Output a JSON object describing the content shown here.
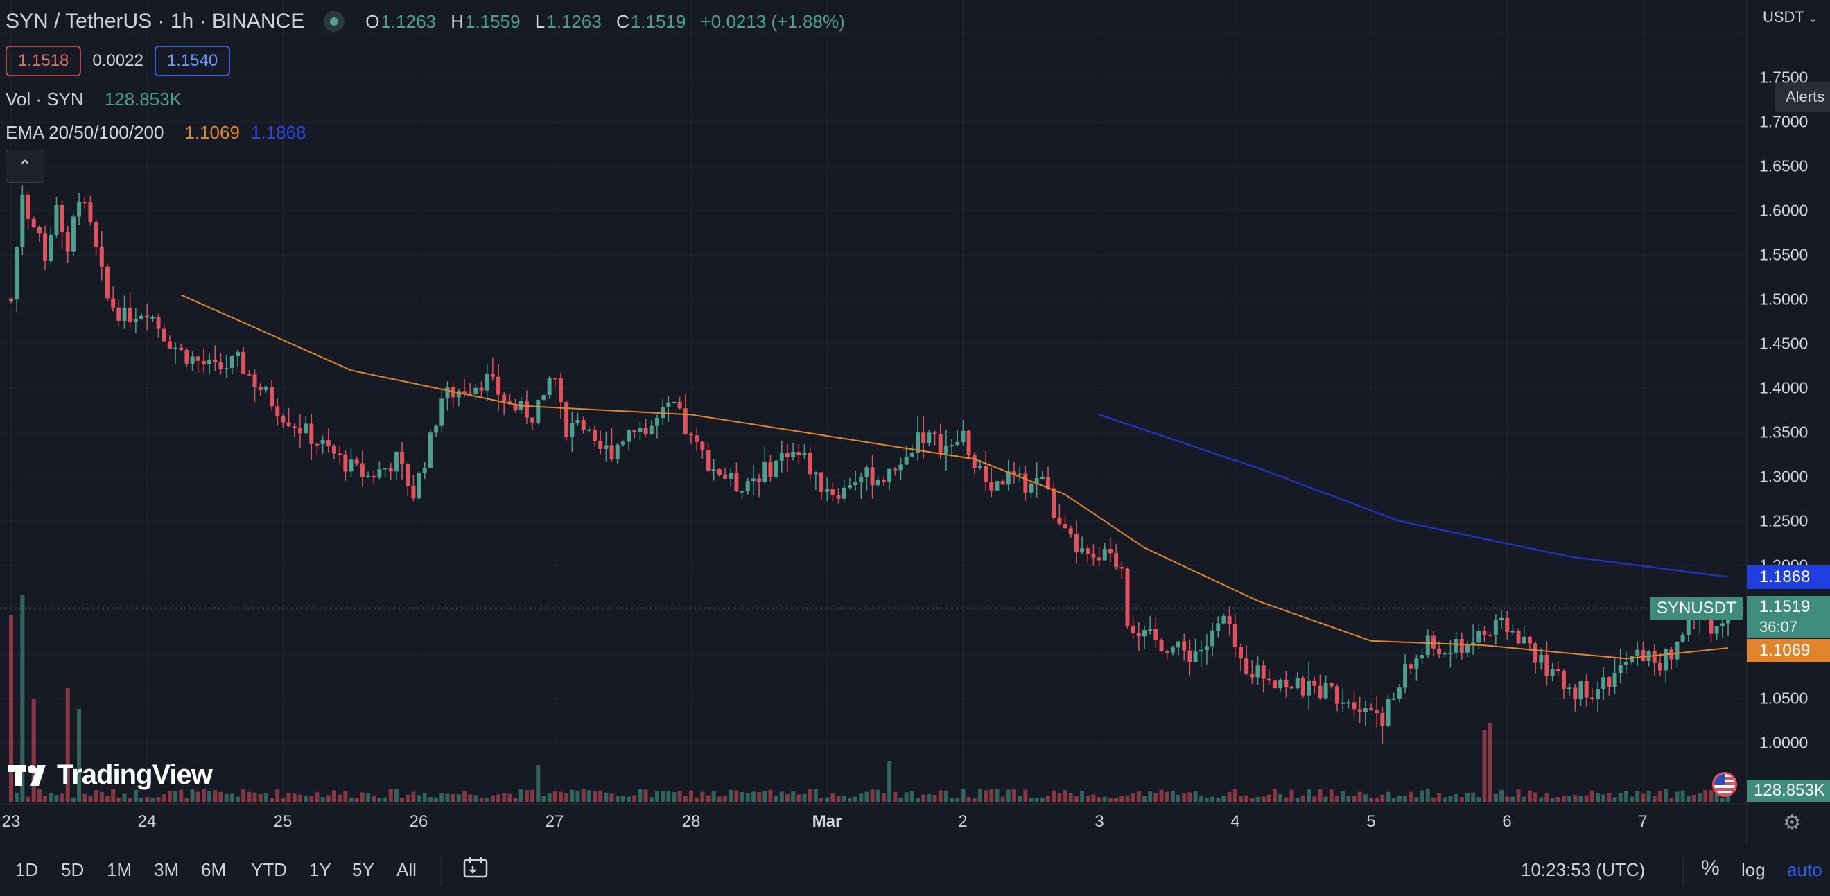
{
  "header": {
    "symbol": "SYN / TetherUS · 1h · BINANCE",
    "open_key": "O",
    "open": "1.1263",
    "high_key": "H",
    "high": "1.1559",
    "low_key": "L",
    "low": "1.1263",
    "close_key": "C",
    "close": "1.1519",
    "change": "+0.0213 (+1.88%)"
  },
  "quote": {
    "bid": "1.1518",
    "spread": "0.0022",
    "ask": "1.1540"
  },
  "volume_indicator": {
    "name": "Vol · SYN",
    "value": "128.853K"
  },
  "ema_indicator": {
    "name": "EMA 20/50/100/200",
    "value_1": "1.1069",
    "value_2": "1.1868"
  },
  "price_scale": {
    "currency": "USDT",
    "alerts_label": "Alerts",
    "ticks": [
      "1.7500",
      "1.7000",
      "1.6500",
      "1.6000",
      "1.5500",
      "1.5000",
      "1.4500",
      "1.4000",
      "1.3500",
      "1.3000",
      "1.2500",
      "1.2000",
      "1.0500",
      "1.0000"
    ]
  },
  "price_tags": {
    "ema_blue": "1.1868",
    "symbol_label": "SYNUSDT",
    "last_price": "1.1519",
    "countdown": "36:07",
    "ema_orange": "1.1069",
    "volume": "128.853K"
  },
  "logo_text": "TradingView",
  "time_axis": [
    "23",
    "24",
    "25",
    "26",
    "27",
    "28",
    "Mar",
    "2",
    "3",
    "4",
    "5",
    "6",
    "7"
  ],
  "bottom_toolbar": {
    "ranges": [
      "1D",
      "5D",
      "1M",
      "3M",
      "6M",
      "YTD",
      "1Y",
      "5Y",
      "All"
    ],
    "clock": "10:23:53 (UTC)",
    "percent": "%",
    "log": "log",
    "auto": "auto"
  },
  "colors": {
    "up": "#4e9f8f",
    "down": "#e0525c",
    "ema_orange": "#e0852e",
    "ema_blue": "#1f32b8",
    "background": "#161a25"
  },
  "chart_data": {
    "type": "candlestick",
    "interval": "1h",
    "symbol": "SYNUSDT",
    "x_unit": "hours since Feb 23 00:00 UTC",
    "ylim": [
      0.96,
      1.77
    ],
    "close_anchors": [
      [
        0,
        1.5
      ],
      [
        2,
        1.62
      ],
      [
        4,
        1.58
      ],
      [
        6,
        1.55
      ],
      [
        8,
        1.61
      ],
      [
        10,
        1.56
      ],
      [
        12,
        1.62
      ],
      [
        14,
        1.58
      ],
      [
        17,
        1.5
      ],
      [
        20,
        1.48
      ],
      [
        24,
        1.49
      ],
      [
        27,
        1.46
      ],
      [
        30,
        1.44
      ],
      [
        33,
        1.43
      ],
      [
        36,
        1.42
      ],
      [
        40,
        1.43
      ],
      [
        44,
        1.4
      ],
      [
        48,
        1.37
      ],
      [
        52,
        1.35
      ],
      [
        56,
        1.33
      ],
      [
        60,
        1.31
      ],
      [
        63,
        1.3
      ],
      [
        66,
        1.31
      ],
      [
        68,
        1.32
      ],
      [
        71,
        1.28
      ],
      [
        74,
        1.34
      ],
      [
        76,
        1.39
      ],
      [
        80,
        1.4
      ],
      [
        84,
        1.41
      ],
      [
        88,
        1.38
      ],
      [
        92,
        1.37
      ],
      [
        95,
        1.41
      ],
      [
        96,
        1.42
      ],
      [
        98,
        1.34
      ],
      [
        100,
        1.37
      ],
      [
        103,
        1.33
      ],
      [
        106,
        1.33
      ],
      [
        110,
        1.36
      ],
      [
        112,
        1.35
      ],
      [
        115,
        1.37
      ],
      [
        117,
        1.38
      ],
      [
        120,
        1.34
      ],
      [
        124,
        1.31
      ],
      [
        128,
        1.29
      ],
      [
        131,
        1.3
      ],
      [
        134,
        1.31
      ],
      [
        137,
        1.33
      ],
      [
        140,
        1.32
      ],
      [
        143,
        1.29
      ],
      [
        146,
        1.28
      ],
      [
        149,
        1.3
      ],
      [
        152,
        1.3
      ],
      [
        155,
        1.3
      ],
      [
        158,
        1.32
      ],
      [
        160,
        1.35
      ],
      [
        163,
        1.34
      ],
      [
        166,
        1.33
      ],
      [
        168,
        1.35
      ],
      [
        170,
        1.31
      ],
      [
        173,
        1.29
      ],
      [
        176,
        1.3
      ],
      [
        179,
        1.29
      ],
      [
        182,
        1.3
      ],
      [
        185,
        1.24
      ],
      [
        188,
        1.22
      ],
      [
        191,
        1.2
      ],
      [
        193,
        1.21
      ],
      [
        196,
        1.2
      ],
      [
        197,
        1.14
      ],
      [
        200,
        1.12
      ],
      [
        204,
        1.11
      ],
      [
        208,
        1.1
      ],
      [
        211,
        1.11
      ],
      [
        214,
        1.14
      ],
      [
        217,
        1.09
      ],
      [
        220,
        1.08
      ],
      [
        224,
        1.07
      ],
      [
        228,
        1.06
      ],
      [
        232,
        1.06
      ],
      [
        236,
        1.05
      ],
      [
        240,
        1.04
      ],
      [
        242,
        1.03
      ],
      [
        244,
        1.05
      ],
      [
        246,
        1.08
      ],
      [
        250,
        1.11
      ],
      [
        253,
        1.1
      ],
      [
        256,
        1.11
      ],
      [
        259,
        1.12
      ],
      [
        262,
        1.13
      ],
      [
        264,
        1.13
      ],
      [
        266,
        1.12
      ],
      [
        268,
        1.11
      ],
      [
        270,
        1.09
      ],
      [
        273,
        1.07
      ],
      [
        276,
        1.06
      ],
      [
        279,
        1.06
      ],
      [
        282,
        1.07
      ],
      [
        285,
        1.09
      ],
      [
        288,
        1.1
      ],
      [
        291,
        1.09
      ],
      [
        293,
        1.1
      ],
      [
        296,
        1.14
      ],
      [
        298,
        1.14
      ],
      [
        301,
        1.13
      ],
      [
        303,
        1.152
      ]
    ],
    "ema_orange": [
      [
        30,
        1.505
      ],
      [
        60,
        1.42
      ],
      [
        90,
        1.38
      ],
      [
        120,
        1.37
      ],
      [
        150,
        1.34
      ],
      [
        170,
        1.32
      ],
      [
        186,
        1.28
      ],
      [
        200,
        1.22
      ],
      [
        220,
        1.16
      ],
      [
        240,
        1.115
      ],
      [
        260,
        1.11
      ],
      [
        285,
        1.095
      ],
      [
        303,
        1.107
      ]
    ],
    "ema_blue": [
      [
        192,
        1.37
      ],
      [
        220,
        1.31
      ],
      [
        245,
        1.25
      ],
      [
        275,
        1.21
      ],
      [
        303,
        1.187
      ]
    ],
    "volume_spikes": [
      [
        0,
        0.9
      ],
      [
        2,
        1.0
      ],
      [
        4,
        0.5
      ],
      [
        10,
        0.55
      ],
      [
        12,
        0.45
      ],
      [
        260,
        0.35
      ],
      [
        261,
        0.38
      ],
      [
        155,
        0.2
      ],
      [
        93,
        0.18
      ]
    ]
  }
}
